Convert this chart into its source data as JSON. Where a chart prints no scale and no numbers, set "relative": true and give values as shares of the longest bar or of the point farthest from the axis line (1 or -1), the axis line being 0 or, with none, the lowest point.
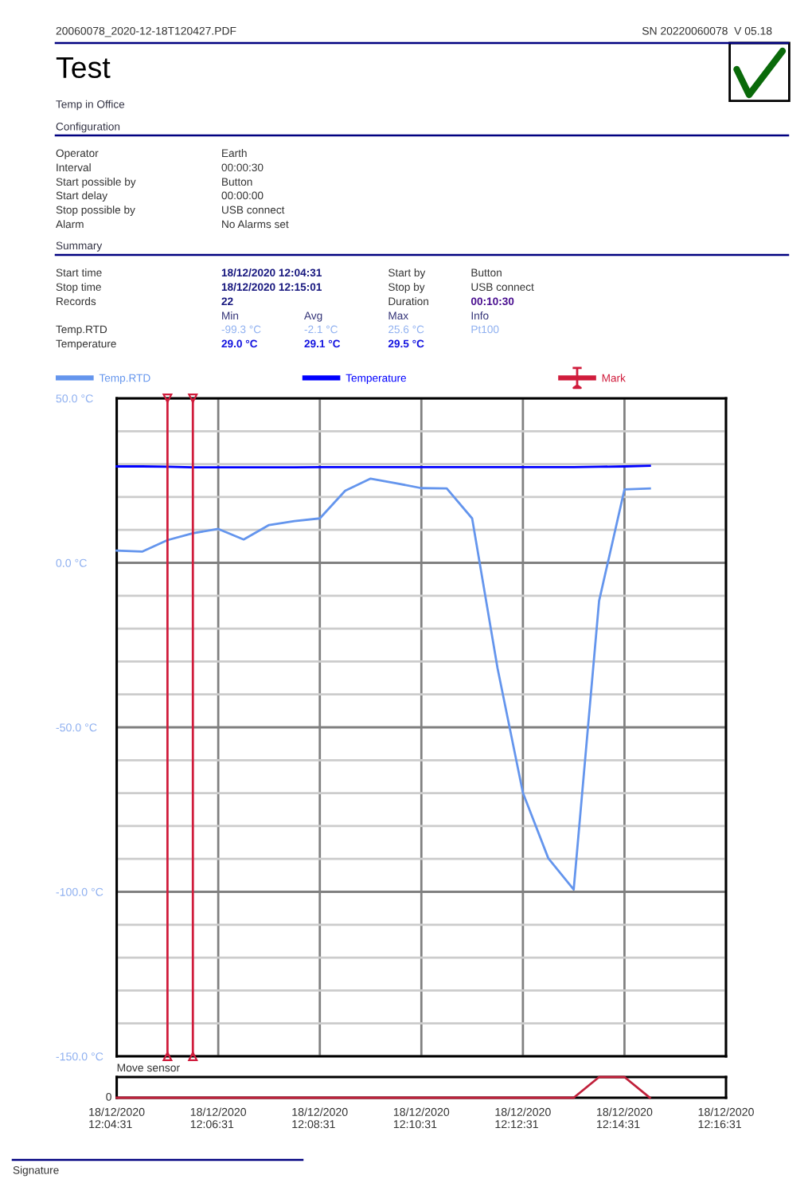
{
  "chart_data": [
    {
      "type": "line",
      "title": "Test",
      "subtitle": "Temp in Office",
      "annotations": [
        "20060078_2020-12-18T120427.PDF",
        "SN 20220060078  V 05.18",
        "Configuration",
        "Operator",
        "Earth",
        "Interval",
        "00:00:30",
        "Start possible by",
        "Button",
        "Start delay",
        "00:00:00",
        "Stop possible by",
        "USB connect",
        "Alarm",
        "No Alarms set",
        "Summary",
        "Start time",
        "18/12/2020 12:04:31",
        "Start by",
        "Button",
        "Stop time",
        "18/12/2020 12:15:01",
        "Stop by",
        "USB connect",
        "Records",
        "22",
        "Duration",
        "00:10:30",
        "Min",
        "Avg",
        "Max",
        "Info",
        "Temp.RTD",
        "-99.3 °C",
        "-2.1 °C",
        "25.6 °C",
        "Pt100",
        "Temperature",
        "29.0 °C",
        "29.1 °C",
        "29.5 °C",
        "Signature"
      ],
      "x": [
        "2020-12-18T12:04:31",
        "2020-12-18T12:05:01",
        "2020-12-18T12:05:31",
        "2020-12-18T12:06:01",
        "2020-12-18T12:06:31",
        "2020-12-18T12:07:01",
        "2020-12-18T12:07:31",
        "2020-12-18T12:08:01",
        "2020-12-18T12:08:31",
        "2020-12-18T12:09:01",
        "2020-12-18T12:09:31",
        "2020-12-18T12:10:01",
        "2020-12-18T12:10:31",
        "2020-12-18T12:11:01",
        "2020-12-18T12:11:31",
        "2020-12-18T12:12:01",
        "2020-12-18T12:12:31",
        "2020-12-18T12:13:01",
        "2020-12-18T12:13:31",
        "2020-12-18T12:14:01",
        "2020-12-18T12:14:31",
        "2020-12-18T12:15:01"
      ],
      "series": [
        {
          "name": "Temp.RTD",
          "color": "#6495ed",
          "values": [
            3.7,
            3.4,
            6.9,
            9.0,
            10.3,
            7.1,
            11.5,
            12.7,
            13.5,
            21.9,
            25.6,
            24.2,
            22.7,
            22.6,
            13.5,
            -32.0,
            -69.9,
            -89.8,
            -99.3,
            -11.6,
            22.3,
            22.6
          ]
        },
        {
          "name": "Temperature",
          "color": "#0000ff",
          "values": [
            29.3,
            29.3,
            29.2,
            29.0,
            29.0,
            29.0,
            29.0,
            29.0,
            29.1,
            29.1,
            29.1,
            29.1,
            29.1,
            29.1,
            29.1,
            29.1,
            29.1,
            29.1,
            29.1,
            29.2,
            29.3,
            29.5
          ]
        }
      ],
      "xlim": [
        "2020-12-18T12:04:31",
        "2020-12-18T12:16:31"
      ],
      "xticks": [
        {
          "value": "2020-12-18T12:04:31",
          "label": null
        },
        {
          "value": "2020-12-18T12:06:31",
          "label": null
        },
        {
          "value": "2020-12-18T12:08:31",
          "label": null
        },
        {
          "value": "2020-12-18T12:10:31",
          "label": null
        },
        {
          "value": "2020-12-18T12:12:31",
          "label": null
        },
        {
          "value": "2020-12-18T12:14:31",
          "label": null
        },
        {
          "value": "2020-12-18T12:16:31",
          "label": null
        }
      ],
      "ylim": [
        -150,
        50
      ],
      "yticks": [
        {
          "value": -150,
          "label": "-150.0 °C"
        },
        {
          "value": -140,
          "label": null
        },
        {
          "value": -130,
          "label": null
        },
        {
          "value": -120,
          "label": null
        },
        {
          "value": -110,
          "label": null
        },
        {
          "value": -100,
          "label": "-100.0 °C"
        },
        {
          "value": -90,
          "label": null
        },
        {
          "value": -80,
          "label": null
        },
        {
          "value": -70,
          "label": null
        },
        {
          "value": -60,
          "label": null
        },
        {
          "value": -50,
          "label": "-50.0 °C"
        },
        {
          "value": -40,
          "label": null
        },
        {
          "value": -30,
          "label": null
        },
        {
          "value": -20,
          "label": null
        },
        {
          "value": -10,
          "label": null
        },
        {
          "value": 0,
          "label": "0.0 °C"
        },
        {
          "value": 10,
          "label": null
        },
        {
          "value": 20,
          "label": null
        },
        {
          "value": 30,
          "label": null
        },
        {
          "value": 40,
          "label": null
        },
        {
          "value": 50,
          "label": "50.0 °C"
        }
      ],
      "grid": true,
      "legend": "top",
      "tick_labels": "y",
      "ref_lines": [
        {
          "axis": "x",
          "value": "2020-12-18T12:05:31",
          "label": "Mark",
          "color": "#d01c3c"
        },
        {
          "axis": "x",
          "value": "2020-12-18T12:06:01",
          "color": "#d01c3c"
        }
      ]
    },
    {
      "type": "line",
      "title": "Move sensor",
      "relative": true,
      "x": [
        "2020-12-18T12:04:31",
        "2020-12-18T12:05:01",
        "2020-12-18T12:05:31",
        "2020-12-18T12:06:01",
        "2020-12-18T12:06:31",
        "2020-12-18T12:07:01",
        "2020-12-18T12:07:31",
        "2020-12-18T12:08:01",
        "2020-12-18T12:08:31",
        "2020-12-18T12:09:01",
        "2020-12-18T12:09:31",
        "2020-12-18T12:10:01",
        "2020-12-18T12:10:31",
        "2020-12-18T12:11:01",
        "2020-12-18T12:11:31",
        "2020-12-18T12:12:01",
        "2020-12-18T12:12:31",
        "2020-12-18T12:13:01",
        "2020-12-18T12:13:31",
        "2020-12-18T12:14:01",
        "2020-12-18T12:14:31",
        "2020-12-18T12:15:01"
      ],
      "series": [
        {
          "color": "#c0203a",
          "values": [
            0,
            0,
            0,
            0,
            0,
            0,
            0,
            0,
            0,
            0,
            0,
            0,
            0,
            0,
            0,
            0,
            0,
            0,
            0,
            1,
            1,
            0
          ]
        }
      ],
      "xlim": [
        "2020-12-18T12:04:31",
        "2020-12-18T12:16:31"
      ],
      "xticks": [
        {
          "value": "2020-12-18T12:04:31",
          "label": "18/12/2020\n12:04:31"
        },
        {
          "value": "2020-12-18T12:06:31",
          "label": "18/12/2020\n12:06:31"
        },
        {
          "value": "2020-12-18T12:08:31",
          "label": "18/12/2020\n12:08:31"
        },
        {
          "value": "2020-12-18T12:10:31",
          "label": "18/12/2020\n12:10:31"
        },
        {
          "value": "2020-12-18T12:12:31",
          "label": "18/12/2020\n12:12:31"
        },
        {
          "value": "2020-12-18T12:14:31",
          "label": "18/12/2020\n12:14:31"
        },
        {
          "value": "2020-12-18T12:16:31",
          "label": "18/12/2020\n12:16:31"
        }
      ],
      "tick_labels": "x",
      "annotations": [
        {
          "text": "0",
          "y": 0
        }
      ]
    }
  ]
}
